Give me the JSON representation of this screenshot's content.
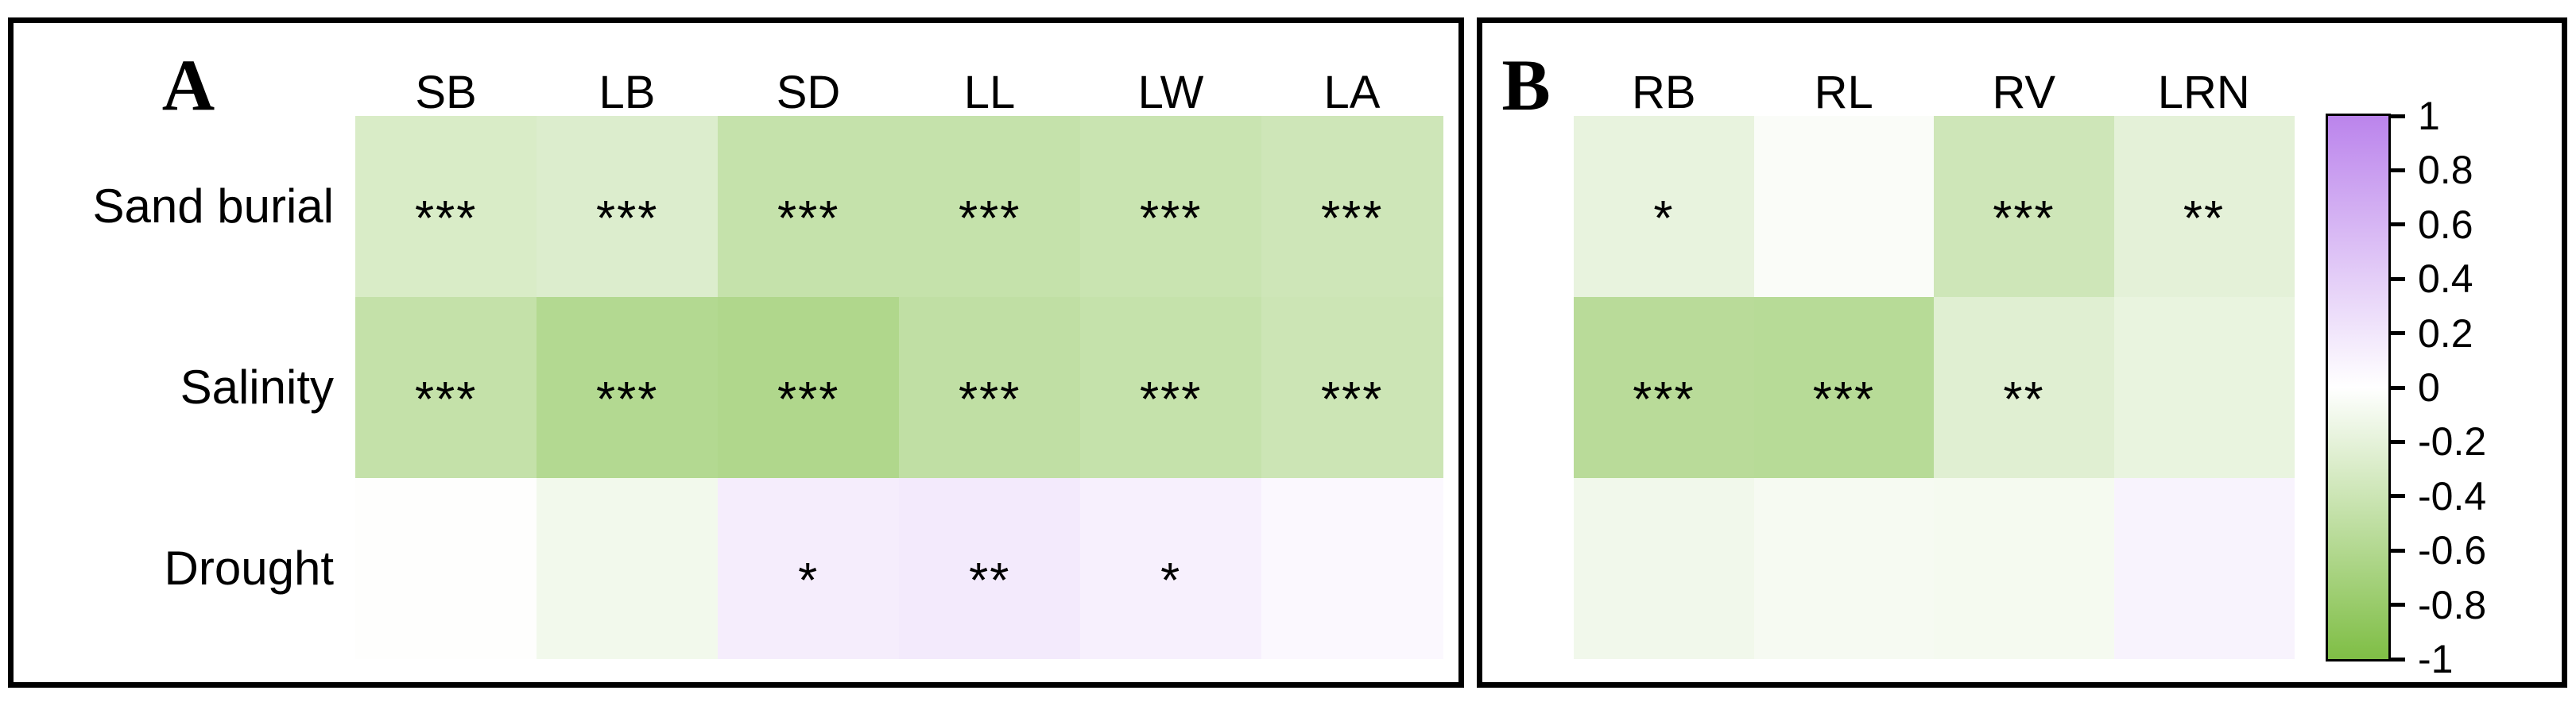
{
  "figure": {
    "background": "#ffffff",
    "panel_a": {
      "label": "A"
    },
    "panel_b": {
      "label": "B"
    },
    "colorbar": {
      "ticks": [
        "1",
        "0.8",
        "0.6",
        "0.4",
        "0.2",
        "0",
        "-0.2",
        "-0.4",
        "-0.6",
        "-0.8",
        "-1"
      ],
      "max_color": "#bb84ec",
      "zero_color": "#ffffff",
      "min_color": "#7fbe45"
    }
  },
  "chart_data": [
    {
      "type": "heatmap",
      "panel": "A",
      "title": "",
      "columns": [
        "SB",
        "LB",
        "SD",
        "LL",
        "LW",
        "LA"
      ],
      "rows": [
        "Sand burial",
        "Salinity",
        "Drought"
      ],
      "values": [
        [
          -0.3,
          -0.27,
          -0.45,
          -0.45,
          -0.42,
          -0.38
        ],
        [
          -0.46,
          -0.59,
          -0.62,
          -0.49,
          -0.45,
          -0.4
        ],
        [
          -0.01,
          -0.1,
          0.15,
          0.17,
          0.12,
          0.06
        ]
      ],
      "significance": [
        [
          "***",
          "***",
          "***",
          "***",
          "***",
          "***"
        ],
        [
          "***",
          "***",
          "***",
          "***",
          "***",
          "***"
        ],
        [
          "",
          "",
          "*",
          "**",
          "*",
          ""
        ]
      ],
      "value_range": [
        -1,
        1
      ],
      "colormap": {
        "negative": "green",
        "zero": "white",
        "positive": "purple"
      },
      "row_labels_shown": true
    },
    {
      "type": "heatmap",
      "panel": "B",
      "title": "",
      "columns": [
        "RB",
        "RL",
        "RV",
        "LRN"
      ],
      "rows": [
        "Sand burial",
        "Salinity",
        "Drought"
      ],
      "values": [
        [
          -0.18,
          -0.04,
          -0.38,
          -0.21
        ],
        [
          -0.55,
          -0.56,
          -0.24,
          -0.17
        ],
        [
          -0.11,
          -0.07,
          -0.08,
          0.1
        ]
      ],
      "significance": [
        [
          "*",
          "",
          "***",
          "**"
        ],
        [
          "***",
          "***",
          "**",
          ""
        ],
        [
          "",
          "",
          "",
          ""
        ]
      ],
      "value_range": [
        -1,
        1
      ],
      "colormap": {
        "negative": "green",
        "zero": "white",
        "positive": "purple"
      },
      "row_labels_shown": false
    }
  ]
}
